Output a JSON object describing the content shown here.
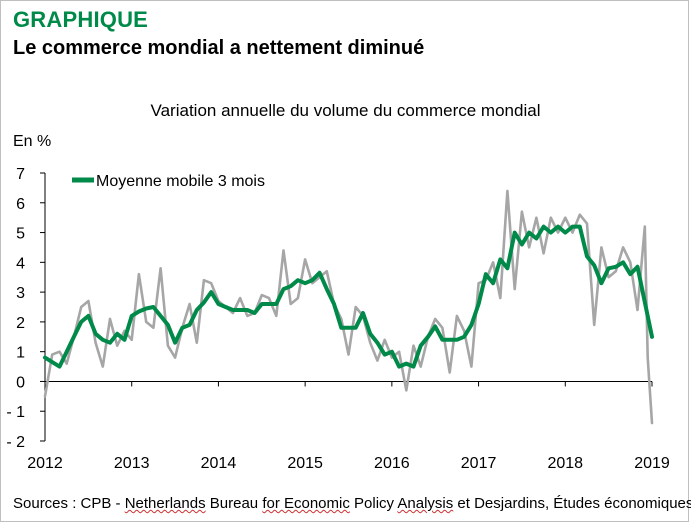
{
  "header": {
    "kicker": "GRAPHIQUE",
    "headline": "Le commerce mondial a nettement diminué"
  },
  "source": {
    "prefix": "Sources : CPB - ",
    "part1": "Netherlands",
    "space1": " Bureau ",
    "part2": "for Economic",
    "space2": " Policy ",
    "part3": "Analysis",
    "suffix": " et Desjardins, Études économiques"
  },
  "colors": {
    "monthly": "#a6a6a6",
    "moving_average": "#008a4a",
    "kicker": "#008a4a"
  },
  "chart_data": {
    "type": "line",
    "title": "Variation annuelle du volume du commerce mondial",
    "ylabel": "En %",
    "xlabel": "",
    "ylim": [
      -2,
      7
    ],
    "yticks": [
      -2,
      -1,
      0,
      1,
      2,
      3,
      4,
      5,
      6,
      7
    ],
    "xlim": [
      2012,
      2019
    ],
    "xticks": [
      "2012",
      "2013",
      "2014",
      "2015",
      "2016",
      "2017",
      "2018",
      "2019"
    ],
    "grid": false,
    "legend": {
      "position": "top-left",
      "entries": [
        "Moyenne mobile 3 mois"
      ]
    },
    "series": [
      {
        "style": "thin-gray",
        "x": [
          2012.0,
          2012.083,
          2012.167,
          2012.25,
          2012.333,
          2012.417,
          2012.5,
          2012.583,
          2012.667,
          2012.75,
          2012.833,
          2012.917,
          2013.0,
          2013.083,
          2013.167,
          2013.25,
          2013.333,
          2013.417,
          2013.5,
          2013.583,
          2013.667,
          2013.75,
          2013.833,
          2013.917,
          2014.0,
          2014.083,
          2014.167,
          2014.25,
          2014.333,
          2014.417,
          2014.5,
          2014.583,
          2014.667,
          2014.75,
          2014.833,
          2014.917,
          2015.0,
          2015.083,
          2015.167,
          2015.25,
          2015.333,
          2015.417,
          2015.5,
          2015.583,
          2015.667,
          2015.75,
          2015.833,
          2015.917,
          2016.0,
          2016.083,
          2016.167,
          2016.25,
          2016.333,
          2016.417,
          2016.5,
          2016.583,
          2016.667,
          2016.75,
          2016.833,
          2016.917,
          2017.0,
          2017.083,
          2017.167,
          2017.25,
          2017.333,
          2017.417,
          2017.5,
          2017.583,
          2017.667,
          2017.75,
          2017.833,
          2017.917,
          2018.0,
          2018.083,
          2018.167,
          2018.25,
          2018.333,
          2018.417,
          2018.5,
          2018.583,
          2018.667,
          2018.75,
          2018.833,
          2018.917
        ],
        "y": [
          -0.5,
          0.9,
          1.0,
          0.6,
          1.5,
          2.5,
          2.7,
          1.3,
          0.5,
          2.1,
          1.2,
          1.7,
          1.4,
          3.6,
          2.0,
          1.8,
          3.8,
          1.2,
          0.8,
          1.8,
          2.6,
          1.3,
          3.4,
          3.3,
          2.7,
          2.5,
          2.3,
          2.8,
          2.2,
          2.3,
          2.9,
          2.8,
          2.2,
          4.4,
          2.6,
          2.8,
          4.1,
          3.3,
          3.5,
          3.7,
          2.6,
          2.1,
          0.9,
          2.5,
          2.2,
          1.3,
          0.7,
          1.4,
          0.8,
          1.0,
          -0.3,
          1.2,
          0.5,
          1.5,
          2.1,
          1.8,
          0.3,
          2.2,
          1.7,
          0.5,
          3.3,
          3.4,
          4.0,
          2.8,
          6.4,
          3.1,
          5.7,
          4.5,
          5.5,
          4.3,
          5.5,
          5.0,
          5.5,
          5.0,
          5.6,
          5.3,
          1.9,
          4.5,
          3.5,
          3.7,
          4.5,
          4.0,
          2.4,
          5.2
        ],
        "tail_x": [
          2018.917,
          2018.95,
          2019.0
        ],
        "tail_y": [
          5.2,
          0.8,
          -1.4
        ]
      },
      {
        "name": "Moyenne mobile 3 mois",
        "style": "thick-green",
        "x": [
          2012.0,
          2012.083,
          2012.167,
          2012.25,
          2012.333,
          2012.417,
          2012.5,
          2012.583,
          2012.667,
          2012.75,
          2012.833,
          2012.917,
          2013.0,
          2013.083,
          2013.167,
          2013.25,
          2013.333,
          2013.417,
          2013.5,
          2013.583,
          2013.667,
          2013.75,
          2013.833,
          2013.917,
          2014.0,
          2014.083,
          2014.167,
          2014.25,
          2014.333,
          2014.417,
          2014.5,
          2014.583,
          2014.667,
          2014.75,
          2014.833,
          2014.917,
          2015.0,
          2015.083,
          2015.167,
          2015.25,
          2015.333,
          2015.417,
          2015.5,
          2015.583,
          2015.667,
          2015.75,
          2015.833,
          2015.917,
          2016.0,
          2016.083,
          2016.167,
          2016.25,
          2016.333,
          2016.417,
          2016.5,
          2016.583,
          2016.667,
          2016.75,
          2016.833,
          2016.917,
          2017.0,
          2017.083,
          2017.167,
          2017.25,
          2017.333,
          2017.417,
          2017.5,
          2017.583,
          2017.667,
          2017.75,
          2017.833,
          2017.917,
          2018.0,
          2018.083,
          2018.167,
          2018.25,
          2018.333,
          2018.417,
          2018.5,
          2018.583,
          2018.667,
          2018.75,
          2018.833,
          2019.0
        ],
        "y": [
          0.8,
          0.65,
          0.5,
          1.0,
          1.5,
          2.0,
          2.2,
          1.6,
          1.4,
          1.3,
          1.6,
          1.4,
          2.2,
          2.35,
          2.45,
          2.5,
          2.2,
          1.9,
          1.3,
          1.8,
          1.9,
          2.4,
          2.65,
          3.0,
          2.6,
          2.5,
          2.4,
          2.4,
          2.4,
          2.3,
          2.6,
          2.6,
          2.6,
          3.1,
          3.2,
          3.4,
          3.3,
          3.4,
          3.65,
          3.1,
          2.6,
          1.8,
          1.8,
          1.8,
          2.3,
          1.6,
          1.3,
          0.9,
          1.0,
          0.5,
          0.6,
          0.5,
          1.2,
          1.5,
          1.85,
          1.4,
          1.4,
          1.4,
          1.5,
          1.9,
          2.6,
          3.6,
          3.3,
          4.1,
          3.8,
          5.0,
          4.6,
          5.0,
          4.8,
          5.2,
          5.0,
          5.2,
          5.0,
          5.2,
          5.2,
          4.2,
          3.9,
          3.3,
          3.8,
          3.85,
          4.0,
          3.6,
          3.85,
          1.5
        ]
      }
    ]
  }
}
